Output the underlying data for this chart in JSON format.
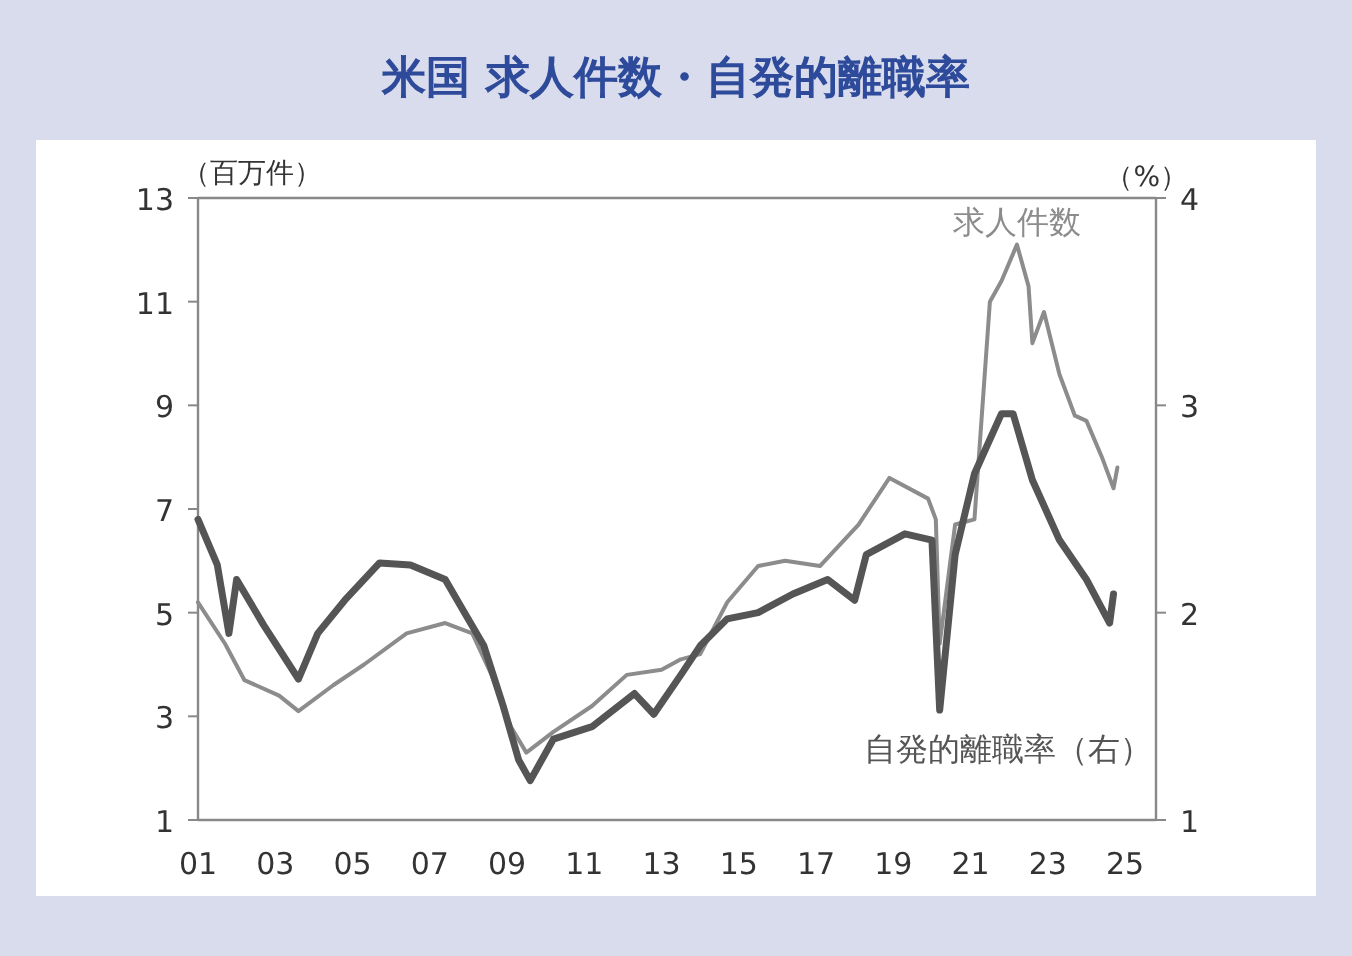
{
  "chart_data": {
    "type": "line",
    "title": "米国 求人件数・自発的離職率",
    "ylabel": "（百万件）",
    "y2label": "（%）",
    "xlim": [
      2001,
      2025.8
    ],
    "xticks": [
      {
        "value": 2001,
        "label": "01"
      },
      {
        "value": 2003,
        "label": "03"
      },
      {
        "value": 2005,
        "label": "05"
      },
      {
        "value": 2007,
        "label": "07"
      },
      {
        "value": 2009,
        "label": "09"
      },
      {
        "value": 2011,
        "label": "11"
      },
      {
        "value": 2013,
        "label": "13"
      },
      {
        "value": 2015,
        "label": "15"
      },
      {
        "value": 2017,
        "label": "17"
      },
      {
        "value": 2019,
        "label": "19"
      },
      {
        "value": 2021,
        "label": "21"
      },
      {
        "value": 2023,
        "label": "23"
      },
      {
        "value": 2025,
        "label": "25"
      }
    ],
    "ylim": [
      1,
      13
    ],
    "yticks": [
      1,
      3,
      5,
      7,
      9,
      11,
      13
    ],
    "y2lim": [
      1,
      4
    ],
    "y2ticks": [
      1,
      2,
      3,
      4
    ],
    "grid": false,
    "series": [
      {
        "name": "求人件数",
        "color": "#8c8c8c",
        "x": [
          2001.0,
          2001.7,
          2002.2,
          2003.1,
          2003.6,
          2004.5,
          2005.3,
          2006.4,
          2007.4,
          2008.1,
          2008.6,
          2009.1,
          2009.5,
          2010.2,
          2011.2,
          2012.1,
          2013.0,
          2013.5,
          2014.0,
          2014.7,
          2015.5,
          2016.2,
          2017.1,
          2018.1,
          2018.9,
          2019.9,
          2020.1,
          2020.2,
          2020.6,
          2021.1,
          2021.5,
          2021.8,
          2022.2,
          2022.5,
          2022.6,
          2022.9,
          2023.3,
          2023.7,
          2024.0,
          2024.4,
          2024.7,
          2024.8
        ],
        "values": [
          5.2,
          4.4,
          3.7,
          3.4,
          3.1,
          3.6,
          4.0,
          4.6,
          4.8,
          4.6,
          3.8,
          2.8,
          2.3,
          2.7,
          3.2,
          3.8,
          3.9,
          4.1,
          4.2,
          5.2,
          5.9,
          6.0,
          5.9,
          6.7,
          7.6,
          7.2,
          6.8,
          4.4,
          6.7,
          6.8,
          11.0,
          11.4,
          12.1,
          11.3,
          10.2,
          10.8,
          9.6,
          8.8,
          8.7,
          8.0,
          7.4,
          7.8
        ]
      },
      {
        "name": "自発的離職率（右）",
        "color": "#555555",
        "axis": "y2",
        "x": [
          2001.0,
          2001.5,
          2001.8,
          2002.0,
          2002.7,
          2003.6,
          2004.1,
          2004.8,
          2005.7,
          2006.5,
          2007.4,
          2007.9,
          2008.4,
          2008.9,
          2009.3,
          2009.6,
          2010.2,
          2011.2,
          2012.3,
          2012.8,
          2013.5,
          2014.0,
          2014.7,
          2015.5,
          2016.4,
          2017.3,
          2018.0,
          2018.3,
          2019.3,
          2020.0,
          2020.2,
          2020.6,
          2021.1,
          2021.8,
          2022.1,
          2022.6,
          2023.3,
          2024.0,
          2024.6,
          2024.7
        ],
        "values": [
          2.45,
          2.23,
          1.9,
          2.16,
          1.94,
          1.68,
          1.9,
          2.06,
          2.24,
          2.23,
          2.16,
          2.0,
          1.84,
          1.55,
          1.29,
          1.19,
          1.39,
          1.45,
          1.61,
          1.51,
          1.7,
          1.84,
          1.97,
          2.0,
          2.09,
          2.16,
          2.06,
          2.28,
          2.38,
          2.35,
          1.53,
          2.28,
          2.67,
          2.96,
          2.96,
          2.64,
          2.35,
          2.16,
          1.95,
          2.09
        ]
      }
    ]
  }
}
